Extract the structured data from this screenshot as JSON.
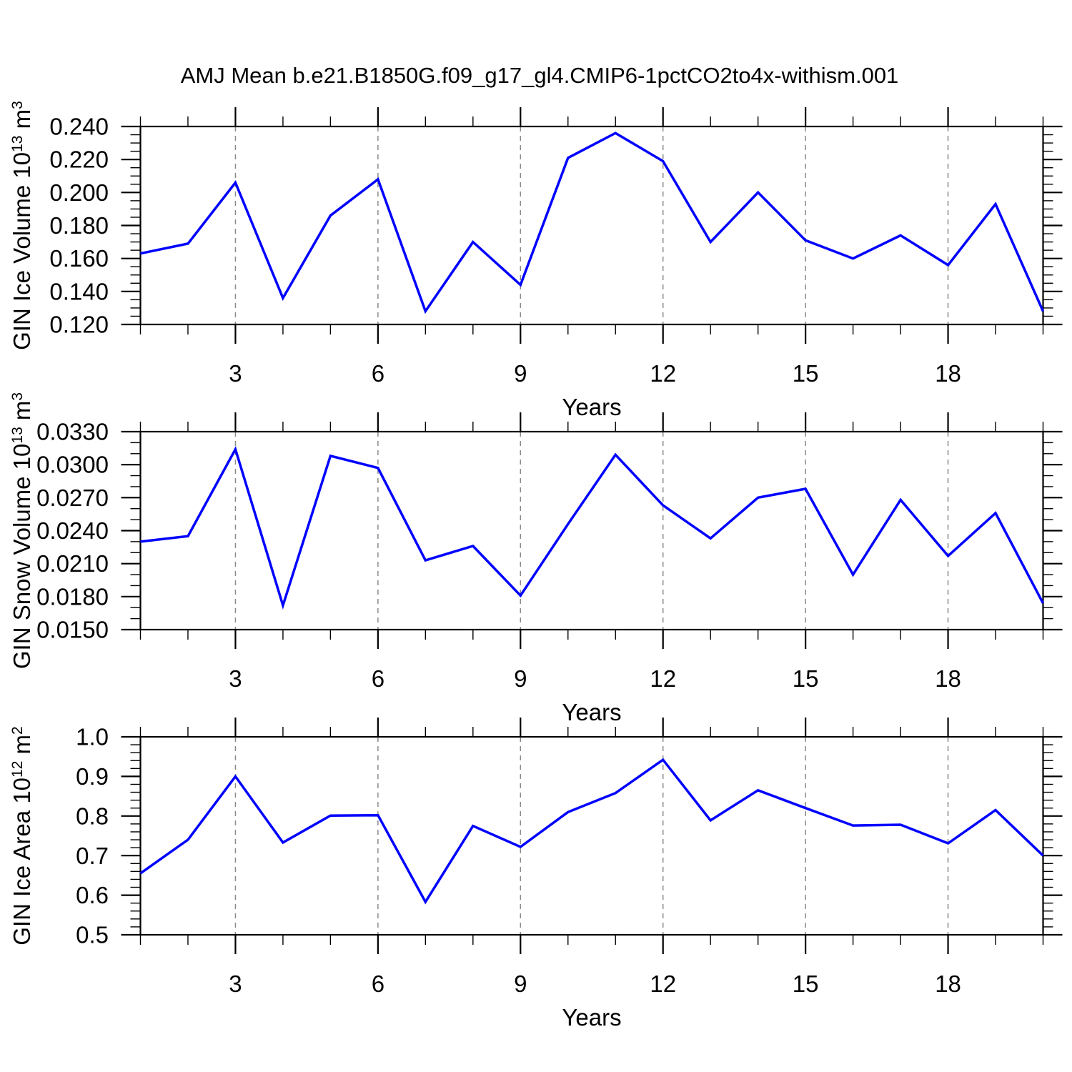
{
  "title": "AMJ Mean b.e21.B1850G.f09_g17_gl4.CMIP6-1pctCO2to4x-withism.001",
  "xlabel": "Years",
  "years": [
    1,
    2,
    3,
    4,
    5,
    6,
    7,
    8,
    9,
    10,
    11,
    12,
    13,
    14,
    15,
    16,
    17,
    18,
    19,
    20
  ],
  "x_axis": {
    "min": 1,
    "max": 20,
    "major_ticks": [
      3,
      6,
      9,
      12,
      15,
      18
    ],
    "major_tick_labels": [
      "3",
      "6",
      "9",
      "12",
      "15",
      "18"
    ],
    "minor_step": 1,
    "gridlines_at_major": true
  },
  "style": {
    "line_color": "#0000FF",
    "grid_color": "#8a8a8a",
    "axis_color": "#000000"
  },
  "chart_data": [
    {
      "type": "line",
      "name": "gin-ice-volume",
      "ylabel": "GIN Ice Volume 10^13 m^3",
      "ylabel_parts": [
        {
          "t": "GIN Ice Volume 10"
        },
        {
          "t": "13",
          "sup": true
        },
        {
          "t": " m"
        },
        {
          "t": "3",
          "sup": true
        }
      ],
      "ymin": 0.12,
      "ymax": 0.24,
      "ytick_step": 0.02,
      "yminor_step": 0.005,
      "ytick_labels": [
        "0.120",
        "0.140",
        "0.160",
        "0.180",
        "0.200",
        "0.220",
        "0.240"
      ],
      "values": [
        0.163,
        0.169,
        0.206,
        0.136,
        0.186,
        0.208,
        0.128,
        0.17,
        0.144,
        0.221,
        0.236,
        0.219,
        0.17,
        0.2,
        0.171,
        0.16,
        0.174,
        0.156,
        0.193,
        0.128
      ]
    },
    {
      "type": "line",
      "name": "gin-snow-volume",
      "ylabel": "GIN Snow Volume 10^13 m^3",
      "ylabel_parts": [
        {
          "t": "GIN Snow Volume 10"
        },
        {
          "t": "13",
          "sup": true
        },
        {
          "t": " m"
        },
        {
          "t": "3",
          "sup": true
        }
      ],
      "ymin": 0.015,
      "ymax": 0.033,
      "ytick_step": 0.003,
      "yminor_step": 0.001,
      "ytick_labels": [
        "0.0150",
        "0.0180",
        "0.0210",
        "0.0240",
        "0.0270",
        "0.0300",
        "0.0330"
      ],
      "values": [
        0.023,
        0.0235,
        0.0314,
        0.0172,
        0.0308,
        0.0297,
        0.0213,
        0.0226,
        0.0181,
        0.0246,
        0.0309,
        0.0263,
        0.0233,
        0.027,
        0.0278,
        0.02,
        0.0268,
        0.0217,
        0.0256,
        0.0174
      ]
    },
    {
      "type": "line",
      "name": "gin-ice-area",
      "ylabel": "GIN Ice Area 10^12 m^2",
      "ylabel_parts": [
        {
          "t": "GIN Ice Area 10"
        },
        {
          "t": "12",
          "sup": true
        },
        {
          "t": " m"
        },
        {
          "t": "2",
          "sup": true
        }
      ],
      "ymin": 0.5,
      "ymax": 1.0,
      "ytick_step": 0.1,
      "yminor_step": 0.02,
      "ytick_labels": [
        "0.5",
        "0.6",
        "0.7",
        "0.8",
        "0.9",
        "1.0"
      ],
      "values": [
        0.655,
        0.74,
        0.9,
        0.733,
        0.801,
        0.802,
        0.583,
        0.775,
        0.722,
        0.81,
        0.858,
        0.942,
        0.789,
        0.865,
        0.82,
        0.776,
        0.778,
        0.731,
        0.815,
        0.7
      ]
    }
  ]
}
